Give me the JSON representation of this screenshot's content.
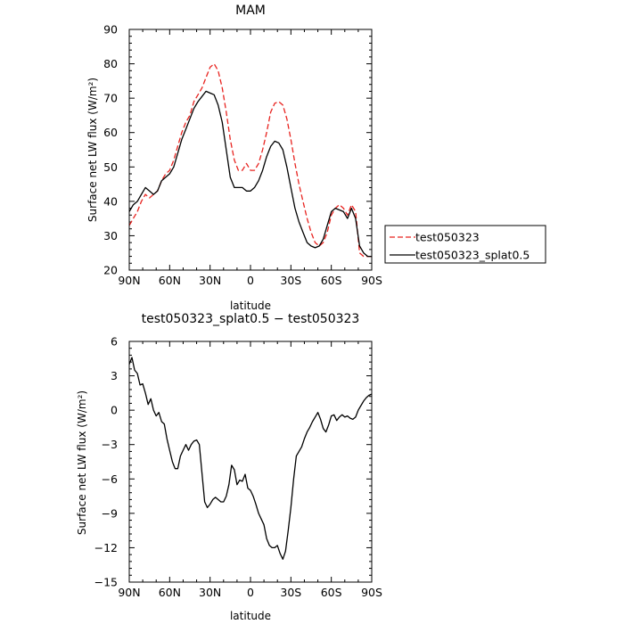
{
  "chart_data": [
    {
      "type": "line",
      "title": "MAM",
      "xlabel": "latitude",
      "ylabel": "Surface net LW flux (W/m²)",
      "xlim": [
        90,
        -90
      ],
      "ylim": [
        20,
        90
      ],
      "x_ticks": [
        90,
        60,
        30,
        0,
        -30,
        -60,
        -90
      ],
      "x_tick_labels": [
        "90N",
        "60N",
        "30N",
        "0",
        "30S",
        "60S",
        "90S"
      ],
      "y_ticks": [
        20,
        30,
        40,
        50,
        60,
        70,
        80,
        90
      ],
      "legend_position": "right",
      "series": [
        {
          "name": "test050323",
          "color": "#e8231f",
          "style": "dashed",
          "x": [
            90,
            87,
            84,
            81,
            78,
            75,
            72,
            69,
            66,
            63,
            60,
            57,
            54,
            51,
            48,
            45,
            42,
            39,
            36,
            33,
            30,
            27,
            24,
            21,
            18,
            15,
            12,
            9,
            6,
            3,
            0,
            -3,
            -6,
            -9,
            -12,
            -15,
            -18,
            -21,
            -24,
            -27,
            -30,
            -33,
            -36,
            -39,
            -42,
            -45,
            -48,
            -51,
            -54,
            -57,
            -60,
            -63,
            -66,
            -69,
            -72,
            -75,
            -78,
            -81,
            -84,
            -87,
            -90
          ],
          "y": [
            33,
            35,
            37,
            40,
            42,
            41,
            42,
            43,
            46,
            48,
            49,
            52,
            56,
            60,
            63,
            65,
            69,
            71,
            73,
            76,
            79,
            80,
            78,
            73,
            66,
            58,
            52,
            49,
            49,
            51,
            49,
            49,
            51,
            55,
            60,
            66,
            68.5,
            69,
            68,
            64,
            58,
            51,
            45,
            40,
            35,
            31,
            28,
            27,
            28,
            31,
            36,
            38,
            39,
            38,
            36,
            39,
            37,
            25,
            24,
            24,
            24
          ]
        },
        {
          "name": "test050323_splat0.5",
          "color": "#000000",
          "style": "solid",
          "x": [
            90,
            87,
            84,
            81,
            78,
            75,
            72,
            69,
            66,
            63,
            60,
            57,
            54,
            51,
            48,
            45,
            42,
            39,
            36,
            33,
            30,
            27,
            24,
            21,
            18,
            15,
            12,
            9,
            6,
            3,
            0,
            -3,
            -6,
            -9,
            -12,
            -15,
            -18,
            -21,
            -24,
            -27,
            -30,
            -33,
            -36,
            -39,
            -42,
            -45,
            -48,
            -51,
            -54,
            -57,
            -60,
            -63,
            -66,
            -69,
            -72,
            -75,
            -78,
            -81,
            -84,
            -87,
            -90
          ],
          "y": [
            37,
            39,
            40,
            42,
            44,
            43,
            42,
            43,
            46,
            47,
            48,
            50,
            54,
            58,
            61,
            64,
            67,
            69,
            70.5,
            72,
            71.5,
            71,
            68,
            63,
            55,
            47,
            44,
            44,
            44,
            43,
            43,
            44,
            46,
            49,
            53,
            56,
            57.5,
            57,
            55,
            50,
            44,
            38,
            34,
            31,
            28,
            27,
            26.5,
            27,
            29,
            33,
            37,
            38,
            37.5,
            37,
            35,
            38,
            35,
            27,
            25,
            24,
            24
          ]
        }
      ]
    },
    {
      "type": "line",
      "title": "test050323_splat0.5 − test050323",
      "xlabel": "latitude",
      "ylabel": "Surface net LW flux (W/m²)",
      "xlim": [
        90,
        -90
      ],
      "ylim": [
        -15,
        6
      ],
      "x_ticks": [
        90,
        60,
        30,
        0,
        -30,
        -60,
        -90
      ],
      "x_tick_labels": [
        "90N",
        "60N",
        "30N",
        "0",
        "30S",
        "60S",
        "90S"
      ],
      "y_ticks": [
        -15,
        -12,
        -9,
        -6,
        -3,
        0,
        3,
        6
      ],
      "series": [
        {
          "color": "#000000",
          "style": "solid",
          "x": [
            90,
            88,
            86,
            84,
            82,
            80,
            78,
            76,
            74,
            72,
            70,
            68,
            66,
            64,
            62,
            60,
            58,
            56,
            54,
            52,
            50,
            48,
            46,
            44,
            42,
            40,
            38,
            36,
            34,
            32,
            30,
            28,
            26,
            24,
            22,
            20,
            18,
            16,
            14,
            12,
            10,
            8,
            6,
            4,
            2,
            0,
            -2,
            -4,
            -6,
            -8,
            -10,
            -12,
            -14,
            -16,
            -18,
            -20,
            -22,
            -24,
            -26,
            -28,
            -30,
            -32,
            -34,
            -36,
            -38,
            -40,
            -42,
            -44,
            -46,
            -48,
            -50,
            -52,
            -54,
            -56,
            -58,
            -60,
            -62,
            -64,
            -66,
            -68,
            -70,
            -72,
            -74,
            -76,
            -78,
            -80,
            -82,
            -84,
            -86,
            -88,
            -90
          ],
          "y": [
            4,
            4.6,
            3.5,
            3.2,
            2.2,
            2.3,
            1.5,
            0.5,
            1,
            0,
            -0.5,
            -0.2,
            -1,
            -1.2,
            -2.5,
            -3.5,
            -4.5,
            -5.1,
            -5.1,
            -4,
            -3.5,
            -3,
            -3.5,
            -3,
            -2.7,
            -2.6,
            -3,
            -5.5,
            -8,
            -8.5,
            -8.2,
            -7.8,
            -7.6,
            -7.8,
            -8,
            -8,
            -7.5,
            -6.5,
            -4.8,
            -5.2,
            -6.5,
            -6.1,
            -6.2,
            -5.6,
            -6.8,
            -7,
            -7.5,
            -8.2,
            -9,
            -9.5,
            -10,
            -11.2,
            -11.8,
            -12,
            -12,
            -11.8,
            -12.5,
            -13,
            -12.3,
            -10.5,
            -8.5,
            -6,
            -4,
            -3.6,
            -3.2,
            -2.5,
            -1.9,
            -1.5,
            -1,
            -0.6,
            -0.2,
            -0.8,
            -1.6,
            -1.9,
            -1.3,
            -0.5,
            -0.4,
            -0.9,
            -0.6,
            -0.4,
            -0.6,
            -0.5,
            -0.7,
            -0.8,
            -0.6,
            0,
            0.4,
            0.8,
            1.1,
            1.3,
            1.4
          ]
        }
      ]
    }
  ]
}
